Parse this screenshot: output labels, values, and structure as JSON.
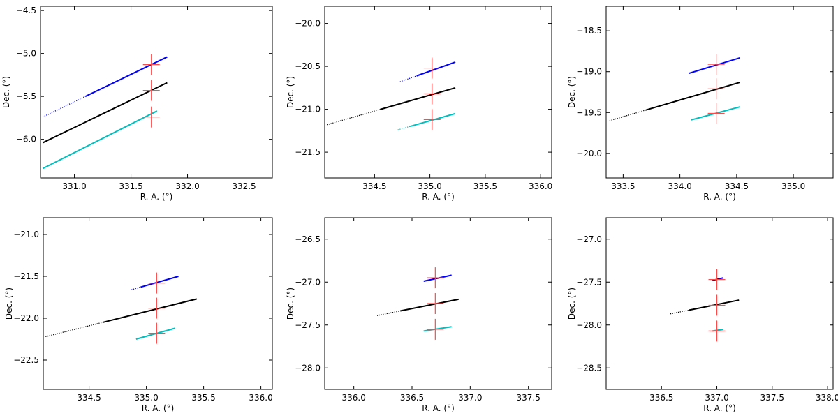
{
  "chart_data": [
    {
      "type": "scatter",
      "xlabel": "R. A. (°)",
      "ylabel": "Dec. (°)",
      "xlim": [
        330.7,
        332.75
      ],
      "ylim": [
        -6.45,
        -4.45
      ],
      "xticks": [
        331.0,
        331.5,
        332.0,
        332.5
      ],
      "yticks": [
        -6.0,
        -5.5,
        -5.0,
        -4.5
      ],
      "grid": false,
      "series": [
        {
          "color": "#0000ff",
          "start": [
            330.72,
            -5.74
          ],
          "end": [
            331.82,
            -5.04
          ],
          "dotted_until": 331.1
        },
        {
          "color": "#000000",
          "start": [
            330.72,
            -6.04
          ],
          "end": [
            331.82,
            -5.34
          ]
        },
        {
          "color": "#00bfbf",
          "start": [
            330.72,
            -6.34
          ],
          "end": [
            331.73,
            -5.67
          ]
        }
      ],
      "markers": [
        [
          331.68,
          -5.13
        ],
        [
          331.68,
          -5.43
        ],
        [
          331.68,
          -5.74
        ]
      ]
    },
    {
      "type": "scatter",
      "xlabel": "R. A. (°)",
      "ylabel": "Dec. (°)",
      "xlim": [
        334.05,
        336.1
      ],
      "ylim": [
        -21.8,
        -19.8
      ],
      "xticks": [
        334.5,
        335.0,
        335.5,
        336.0
      ],
      "yticks": [
        -21.5,
        -21.0,
        -20.5,
        -20.0
      ],
      "grid": false,
      "series": [
        {
          "color": "#0000ff",
          "start": [
            334.73,
            -20.68
          ],
          "end": [
            335.23,
            -20.45
          ],
          "dotted_until": 334.88
        },
        {
          "color": "#000000",
          "start": [
            334.07,
            -21.18
          ],
          "end": [
            335.23,
            -20.75
          ],
          "dotted_until": 334.55
        },
        {
          "color": "#00bfbf",
          "start": [
            334.71,
            -21.24
          ],
          "end": [
            335.23,
            -21.05
          ],
          "dotted_until": 334.82
        }
      ],
      "markers": [
        [
          335.02,
          -20.52
        ],
        [
          335.02,
          -20.82
        ],
        [
          335.02,
          -21.12
        ]
      ]
    },
    {
      "type": "scatter",
      "xlabel": "R. A. (°)",
      "ylabel": "Dec. (°)",
      "xlim": [
        333.35,
        335.35
      ],
      "ylim": [
        -20.3,
        -18.2
      ],
      "xticks": [
        333.5,
        334.0,
        334.5,
        335.0
      ],
      "yticks": [
        -20.0,
        -19.5,
        -19.0,
        -18.5
      ],
      "grid": false,
      "series": [
        {
          "color": "#0000ff",
          "start": [
            334.08,
            -19.02
          ],
          "end": [
            334.53,
            -18.83
          ]
        },
        {
          "color": "#000000",
          "start": [
            333.38,
            -19.6
          ],
          "end": [
            334.53,
            -19.13
          ],
          "dotted_until": 333.7
        },
        {
          "color": "#00bfbf",
          "start": [
            334.1,
            -19.59
          ],
          "end": [
            334.53,
            -19.43
          ]
        }
      ],
      "markers": [
        [
          334.32,
          -18.91
        ],
        [
          334.32,
          -19.21
        ],
        [
          334.32,
          -19.51
        ]
      ]
    },
    {
      "type": "scatter",
      "xlabel": "R. A. (°)",
      "ylabel": "Dec. (°)",
      "xlim": [
        334.1,
        336.1
      ],
      "ylim": [
        -22.85,
        -20.8
      ],
      "xticks": [
        334.5,
        335.0,
        335.5,
        336.0
      ],
      "yticks": [
        -22.5,
        -22.0,
        -21.5,
        -21.0
      ],
      "grid": false,
      "series": [
        {
          "color": "#0000ff",
          "start": [
            334.87,
            -21.66
          ],
          "end": [
            335.28,
            -21.5
          ],
          "dotted_until": 334.95
        },
        {
          "color": "#000000",
          "start": [
            334.12,
            -22.22
          ],
          "end": [
            335.44,
            -21.77
          ],
          "dotted_until": 334.62
        },
        {
          "color": "#00bfbf",
          "start": [
            334.91,
            -22.25
          ],
          "end": [
            335.25,
            -22.12
          ]
        }
      ],
      "markers": [
        [
          335.09,
          -21.58
        ],
        [
          335.09,
          -21.88
        ],
        [
          335.09,
          -22.18
        ]
      ]
    },
    {
      "type": "scatter",
      "xlabel": "R. A. (°)",
      "ylabel": "Dec. (°)",
      "xlim": [
        335.75,
        337.7
      ],
      "ylim": [
        -28.25,
        -26.25
      ],
      "xticks": [
        336.0,
        336.5,
        337.0,
        337.5
      ],
      "yticks": [
        -28.0,
        -27.5,
        -27.0,
        -26.5
      ],
      "grid": false,
      "series": [
        {
          "color": "#0000ff",
          "start": [
            336.6,
            -26.99
          ],
          "end": [
            336.84,
            -26.92
          ]
        },
        {
          "color": "#000000",
          "start": [
            336.2,
            -27.39
          ],
          "end": [
            336.9,
            -27.2
          ],
          "dotted_until": 336.4
        },
        {
          "color": "#00bfbf",
          "start": [
            336.6,
            -27.57
          ],
          "end": [
            336.84,
            -27.52
          ]
        }
      ],
      "markers": [
        [
          336.7,
          -26.95
        ],
        [
          336.7,
          -27.25
        ],
        [
          336.7,
          -27.55
        ]
      ]
    },
    {
      "type": "scatter",
      "xlabel": "R. A. (°)",
      "ylabel": "Dec. (°)",
      "xlim": [
        336.0,
        338.05
      ],
      "ylim": [
        -28.75,
        -26.75
      ],
      "xticks": [
        336.5,
        337.0,
        337.5,
        338.0
      ],
      "yticks": [
        -28.5,
        -28.0,
        -27.5,
        -27.0
      ],
      "grid": false,
      "series": [
        {
          "color": "#0000ff",
          "start": [
            336.96,
            -27.48
          ],
          "end": [
            337.06,
            -27.45
          ]
        },
        {
          "color": "#000000",
          "start": [
            336.58,
            -27.87
          ],
          "end": [
            337.2,
            -27.71
          ],
          "dotted_until": 336.75
        },
        {
          "color": "#00bfbf",
          "start": [
            336.96,
            -28.07
          ],
          "end": [
            337.06,
            -28.05
          ]
        }
      ],
      "markers": [
        [
          337.0,
          -27.47
        ],
        [
          337.0,
          -27.77
        ],
        [
          337.0,
          -28.07
        ]
      ]
    }
  ],
  "colors": {
    "marker": "#ff4a4a",
    "axes": "#000000"
  }
}
